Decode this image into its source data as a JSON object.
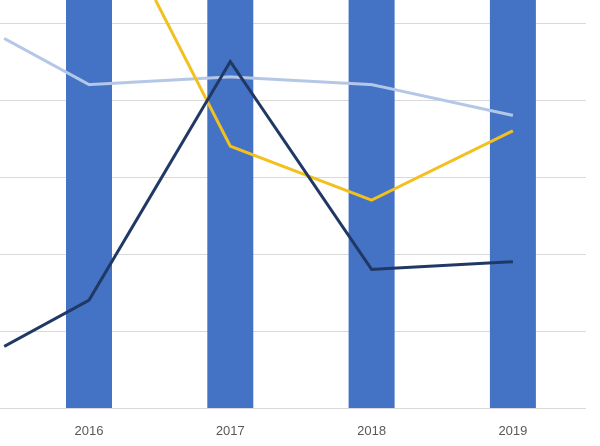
{
  "chart_data": {
    "type": "bar",
    "categories": [
      "2016",
      "2017",
      "2018",
      "2019"
    ],
    "bar_series": {
      "values": [
        7.0,
        6.5,
        7.0,
        6.3
      ],
      "color": "#4472C4"
    },
    "line_series": [
      {
        "key": "light-blue",
        "color": "#B4C7E7",
        "points": [
          {
            "x": 2015.4,
            "y": 4.8
          },
          {
            "x": 2016,
            "y": 4.2
          },
          {
            "x": 2017,
            "y": 4.3
          },
          {
            "x": 2018,
            "y": 4.2
          },
          {
            "x": 2019,
            "y": 3.8
          }
        ]
      },
      {
        "key": "gold",
        "color": "#F2C01F",
        "points": [
          {
            "x": 2016.47,
            "y": 5.3
          },
          {
            "x": 2017,
            "y": 3.4
          },
          {
            "x": 2018,
            "y": 2.7
          },
          {
            "x": 2019,
            "y": 3.6
          }
        ]
      },
      {
        "key": "dark-navy",
        "color": "#203864",
        "points": [
          {
            "x": 2015.4,
            "y": 0.8
          },
          {
            "x": 2016,
            "y": 1.4
          },
          {
            "x": 2017,
            "y": 4.5
          },
          {
            "x": 2018,
            "y": 1.8
          },
          {
            "x": 2019,
            "y": 1.9
          }
        ]
      }
    ],
    "ylim": [
      0,
      5.3
    ],
    "gridlines": [
      0,
      1,
      2,
      3,
      4,
      5
    ],
    "grid": true,
    "grid_color": "#D9D9D9",
    "axis_color": "#D9D9D9",
    "legend": "none",
    "title": "",
    "xlabel": "",
    "ylabel": ""
  }
}
